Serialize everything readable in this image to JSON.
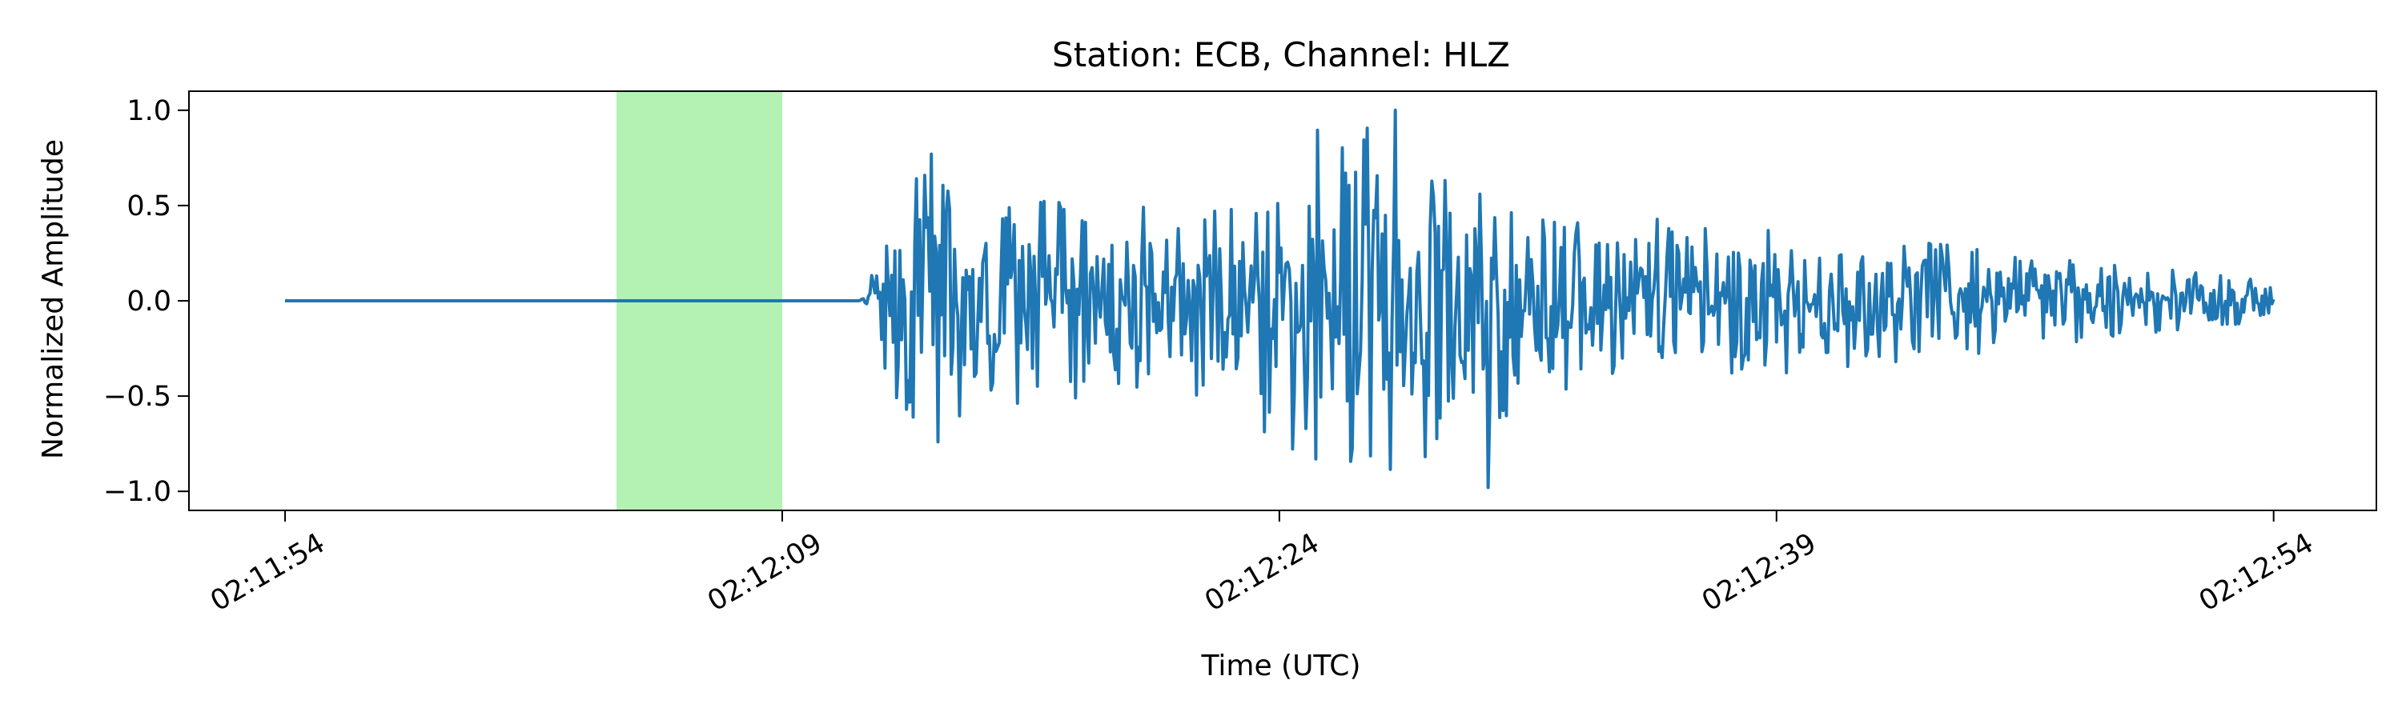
{
  "chart_data": {
    "type": "line",
    "title": "Station: ECB, Channel: HLZ",
    "xlabel": "Time (UTC)",
    "ylabel": "Normalized Amplitude",
    "x_axis": {
      "unit": "seconds after 02:11:54 UTC",
      "range_seconds": [
        -2.9,
        63.1
      ],
      "ticks": [
        {
          "t": 0,
          "label": "02:11:54"
        },
        {
          "t": 15,
          "label": "02:12:09"
        },
        {
          "t": 30,
          "label": "02:12:24"
        },
        {
          "t": 45,
          "label": "02:12:39"
        },
        {
          "t": 60,
          "label": "02:12:54"
        }
      ]
    },
    "y_axis": {
      "range": [
        -1.1,
        1.1
      ],
      "ticks": [
        {
          "v": 1.0,
          "label": "1.0"
        },
        {
          "v": 0.5,
          "label": "0.5"
        },
        {
          "v": 0.0,
          "label": "0.0"
        },
        {
          "v": -0.5,
          "label": "−0.5"
        },
        {
          "v": -1.0,
          "label": "−1.0"
        }
      ]
    },
    "grid": false,
    "legend": "none",
    "highlight_window": {
      "t_start": 10,
      "t_end": 15,
      "color": "#b3f2b3"
    },
    "series": [
      {
        "color": "#1f77b4",
        "x_start": 0,
        "x_end": 60,
        "quiet_until": 17.3,
        "peak_envelope": [
          [
            17.3,
            0.0
          ],
          [
            18.2,
            0.55
          ],
          [
            19,
            0.72
          ],
          [
            20,
            0.62
          ],
          [
            21.5,
            0.55
          ],
          [
            23,
            0.52
          ],
          [
            25,
            0.5
          ],
          [
            27,
            0.48
          ],
          [
            28.6,
            0.55
          ],
          [
            29.5,
            0.7
          ],
          [
            30.8,
            0.88
          ],
          [
            32.4,
            0.95
          ],
          [
            33.5,
            0.9
          ],
          [
            34.6,
            0.8
          ],
          [
            36.5,
            0.62
          ],
          [
            40,
            0.45
          ],
          [
            44,
            0.4
          ],
          [
            48,
            0.33
          ],
          [
            52,
            0.26
          ],
          [
            56,
            0.18
          ],
          [
            60,
            0.1
          ]
        ],
        "extreme_points": [
          {
            "t": 19.5,
            "y": 0.77
          },
          {
            "t": 19.7,
            "y": -0.74
          },
          {
            "t": 33.5,
            "y": 1.0
          },
          {
            "t": 36.3,
            "y": -0.98
          }
        ]
      }
    ]
  }
}
